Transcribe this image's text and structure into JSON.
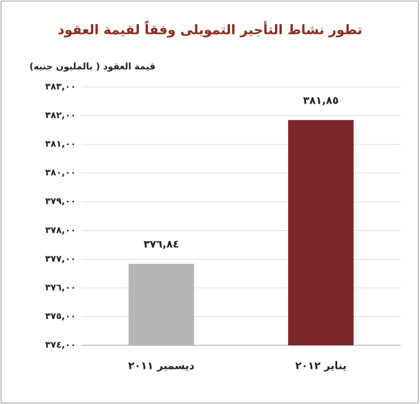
{
  "chart_data": {
    "type": "bar",
    "title": "تطور نشاط التأجير التمويلى وفقاً لقيمة العقود",
    "y_label": "قيمة العقود ( بالمليون جنيه)",
    "categories": [
      "ديسمبر ٢٠١١",
      "يناير ٢٠١٢"
    ],
    "values": [
      376.84,
      381.85
    ],
    "value_labels": [
      "٣٧٦,٨٤",
      "٣٨١,٨٥"
    ],
    "colors": [
      "#b5b5b5",
      "#7d2628"
    ],
    "ylim": [
      374,
      383
    ],
    "yticks": [
      {
        "value": 374,
        "label": "٣٧٤,٠٠"
      },
      {
        "value": 375,
        "label": "٣٧٥,٠٠"
      },
      {
        "value": 376,
        "label": "٣٧٦,٠٠"
      },
      {
        "value": 377,
        "label": "٣٧٧,٠٠"
      },
      {
        "value": 378,
        "label": "٣٧٨,٠٠"
      },
      {
        "value": 379,
        "label": "٣٧٩,٠٠"
      },
      {
        "value": 380,
        "label": "٣٨٠,٠٠"
      },
      {
        "value": 381,
        "label": "٣٨١,٠٠"
      },
      {
        "value": 382,
        "label": "٣٨٢,٠٠"
      },
      {
        "value": 383,
        "label": "٣٨٣,٠٠"
      }
    ],
    "grid": true
  }
}
